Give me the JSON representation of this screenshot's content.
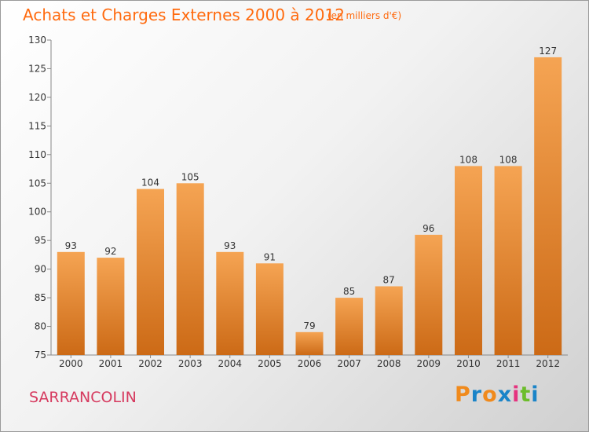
{
  "title": "Achats et Charges Externes 2000 à 2012",
  "subtitle": "(en milliers d'€)",
  "commune": "SARRANCOLIN",
  "logo_text": "Proxiti",
  "colors": {
    "title": "#ff6a0e",
    "commune": "#d63a5f",
    "bar_light": "#f5a453",
    "bar_dark": "#cc6a16",
    "logo_letters": [
      "#f08a1c",
      "#1a84c8",
      "#f08a1c",
      "#1a84c8",
      "#e5337f",
      "#6cbd2b",
      "#1a84c8"
    ]
  },
  "chart_data": {
    "type": "bar",
    "title": "Achats et Charges Externes 2000 à 2012",
    "subtitle": "(en milliers d'€)",
    "xlabel": "",
    "ylabel": "",
    "categories": [
      "2000",
      "2001",
      "2002",
      "2003",
      "2004",
      "2005",
      "2006",
      "2007",
      "2008",
      "2009",
      "2010",
      "2011",
      "2012"
    ],
    "values": [
      93,
      92,
      104,
      105,
      93,
      91,
      79,
      85,
      87,
      96,
      108,
      108,
      127
    ],
    "ylim": [
      75,
      130
    ],
    "yticks": [
      75,
      80,
      85,
      90,
      95,
      100,
      105,
      110,
      115,
      120,
      125,
      130
    ],
    "data_labels": true,
    "grid": false,
    "legend": "none"
  }
}
